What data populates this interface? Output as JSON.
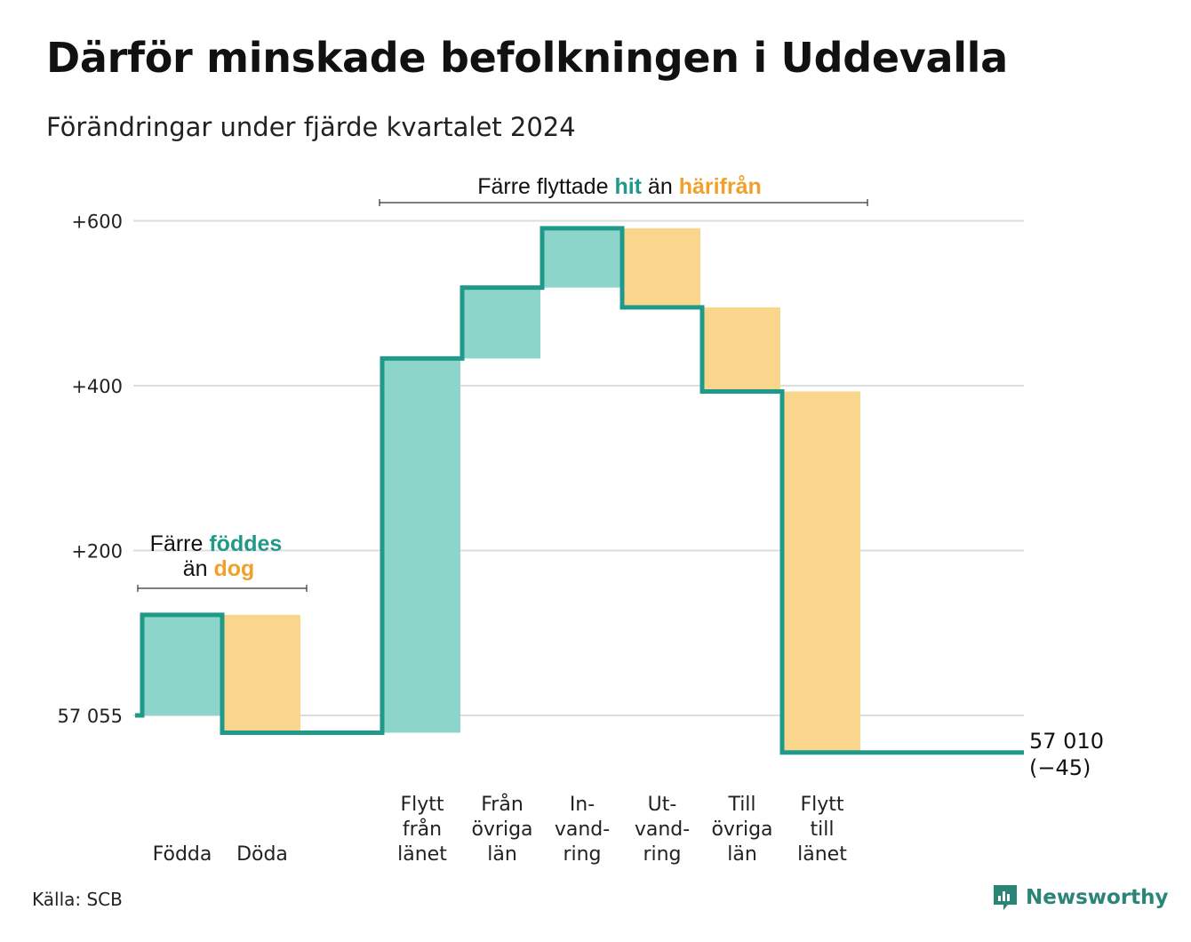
{
  "title": "Därför minskade befolkningen i Uddevalla",
  "subtitle": "Förändringar under fjärde kvartalet 2024",
  "source": "Källa: SCB",
  "brand": "Newsworthy",
  "colors": {
    "increase": "#8dd4cb",
    "decrease": "#fad58c",
    "line": "#1f9a8a",
    "accent_teal": "#21998a",
    "accent_orange": "#f0a12b",
    "grid": "#dddddd"
  },
  "annotations": {
    "births": {
      "prefix": "Färre",
      "highlight1": "föddes",
      "middle": "än",
      "highlight2": "dog"
    },
    "migration": {
      "prefix": "Färre flyttade",
      "highlight1": "hit",
      "middle": "än",
      "highlight2": "härifrån"
    }
  },
  "chart_data": {
    "type": "waterfall",
    "base": 57055,
    "ytick_labels": [
      "57 055",
      "+200",
      "+400",
      "+600"
    ],
    "yticks": [
      0,
      200,
      400,
      600
    ],
    "ylim": [
      -45,
      600
    ],
    "end_label": "57 010",
    "end_change_label": "(−45)",
    "categories": [
      {
        "label": [
          "Födda"
        ],
        "change": 122,
        "kind": "increase"
      },
      {
        "label": [
          "Döda"
        ],
        "change": -143,
        "kind": "decrease"
      },
      {
        "label": [],
        "change": 0,
        "kind": "gap"
      },
      {
        "label": [
          "Flytt",
          "från",
          "länet"
        ],
        "change": 454,
        "kind": "increase"
      },
      {
        "label": [
          "Från",
          "övriga",
          "län"
        ],
        "change": 86,
        "kind": "increase"
      },
      {
        "label": [
          "In-",
          "vand-",
          "ring"
        ],
        "change": 72,
        "kind": "increase"
      },
      {
        "label": [
          "Ut-",
          "vand-",
          "ring"
        ],
        "change": -96,
        "kind": "decrease"
      },
      {
        "label": [
          "Till",
          "övriga",
          "län"
        ],
        "change": -102,
        "kind": "decrease"
      },
      {
        "label": [
          "Flytt",
          "till",
          "länet"
        ],
        "change": -438,
        "kind": "decrease"
      }
    ]
  }
}
